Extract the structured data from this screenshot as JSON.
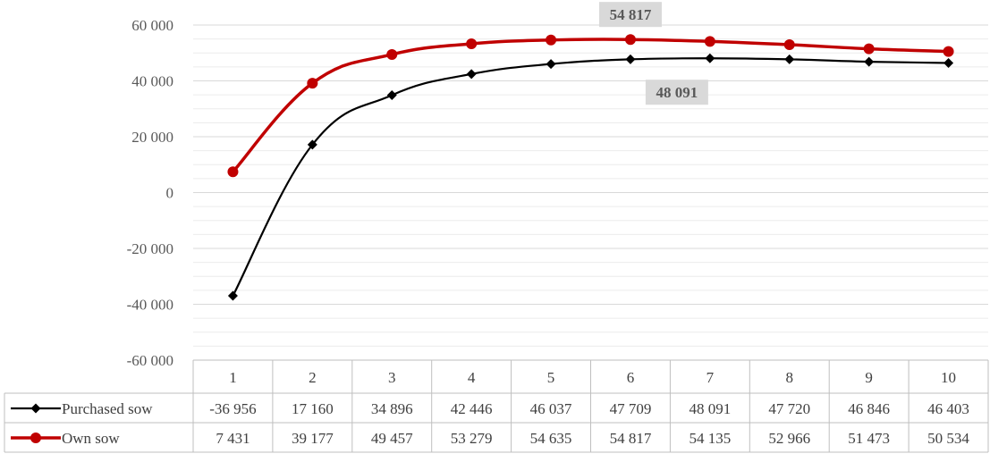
{
  "chart_data": {
    "type": "line",
    "title": "",
    "xlabel": "",
    "ylabel": "",
    "ylim": [
      -60000,
      60000
    ],
    "y_ticks": [
      -60000,
      -40000,
      -20000,
      0,
      20000,
      40000,
      60000
    ],
    "y_tick_labels": [
      "-60 000",
      "-40 000",
      "-20 000",
      "0",
      "20 000",
      "40 000",
      "60 000"
    ],
    "categories": [
      "1",
      "2",
      "3",
      "4",
      "5",
      "6",
      "7",
      "8",
      "9",
      "10"
    ],
    "grid": true,
    "legend": "data table below plot",
    "series": [
      {
        "name": "Purchased sow",
        "color": "#000000",
        "marker": "diamond",
        "values": [
          -36956,
          17160,
          34896,
          42446,
          46037,
          47709,
          48091,
          47720,
          46846,
          46403
        ],
        "value_labels": [
          "-36 956",
          "17 160",
          "34 896",
          "42 446",
          "46 037",
          "47 709",
          "48 091",
          "47 720",
          "46 846",
          "46 403"
        ]
      },
      {
        "name": "Own sow",
        "color": "#C00000",
        "marker": "circle",
        "values": [
          7431,
          39177,
          49457,
          53279,
          54635,
          54817,
          54135,
          52966,
          51473,
          50534
        ],
        "value_labels": [
          "7 431",
          "39 177",
          "49 457",
          "53 279",
          "54 635",
          "54 817",
          "54 135",
          "52 966",
          "51 473",
          "50 534"
        ]
      }
    ],
    "annotations": [
      {
        "series": 1,
        "index": 5,
        "text": "54 817",
        "position": "above"
      },
      {
        "series": 0,
        "index": 6,
        "text": "48 091",
        "position": "below-left"
      }
    ]
  }
}
